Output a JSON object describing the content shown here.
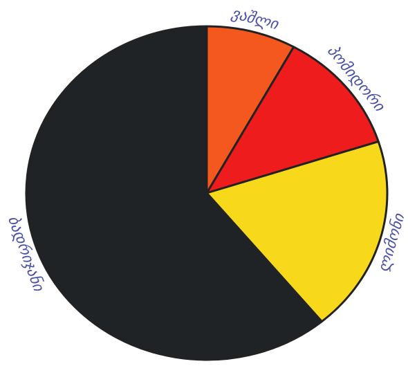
{
  "chart_data": {
    "type": "pie",
    "categories": [
      "ვაშლი",
      "პომიდორი",
      "ლიმონი",
      "ბადრიჯანი"
    ],
    "values": [
      8,
      12,
      19,
      61
    ],
    "colors": [
      "#f4581e",
      "#ee1c1c",
      "#f7d81a",
      "#1f2326"
    ]
  }
}
